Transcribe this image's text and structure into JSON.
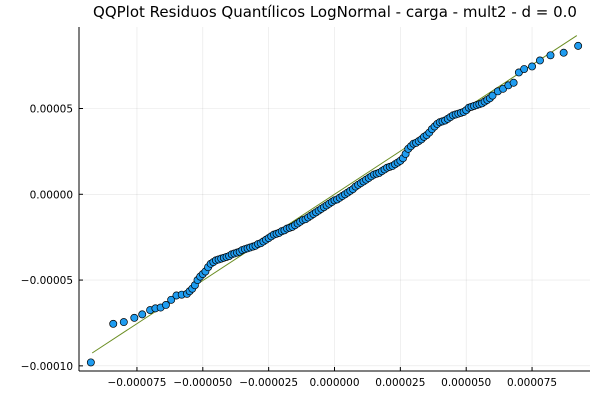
{
  "chart_data": {
    "type": "scatter",
    "title": "QQPlot Residuos Quantílicos LogNormal - carga - mult2 - d = 0.0",
    "xlabel": "",
    "ylabel": "",
    "xlim": [
      -9.7e-05,
      9.7e-05
    ],
    "ylim": [
      -0.000103,
      9.75e-05
    ],
    "grid": true,
    "legend": "none",
    "x_ticks": [
      -7.5e-05,
      -5e-05,
      -2.5e-05,
      0.0,
      2.5e-05,
      5e-05,
      7.5e-05
    ],
    "x_tick_labels": [
      "−0.000075",
      "−0.000050",
      "−0.000025",
      "0.000000",
      "0.000025",
      "0.000050",
      "0.000075"
    ],
    "y_ticks": [
      -0.0001,
      -5e-05,
      0.0,
      5e-05
    ],
    "y_tick_labels": [
      "−0.00010",
      "−0.00005",
      "0.00000",
      "0.00005"
    ],
    "reference_line": {
      "x": [
        -9.2e-05,
        9.2e-05
      ],
      "y": [
        -9.25e-05,
        9.25e-05
      ]
    },
    "marker_color": "#1f9cf0",
    "line_color": "#6b8e23",
    "series": [
      {
        "values_x": [
          -9.25e-05,
          -8.4e-05,
          -8e-05,
          -7.6e-05,
          -7.3e-05,
          -7e-05,
          -6.8e-05,
          -6.6e-05,
          -6.4e-05,
          -6.2e-05,
          -6e-05,
          -5.8e-05,
          -5.6e-05,
          -5.5e-05,
          -5.4e-05,
          -5.3e-05,
          -5.2e-05,
          -5.1e-05,
          -5e-05,
          -4.9e-05,
          -4.8e-05,
          -4.7e-05,
          -4.6e-05,
          -4.5e-05,
          -4.4e-05,
          -4.3e-05,
          -4.2e-05,
          -4.1e-05,
          -4e-05,
          -3.9e-05,
          -3.8e-05,
          -3.7e-05,
          -3.6e-05,
          -3.5e-05,
          -3.4e-05,
          -3.3e-05,
          -3.2e-05,
          -3.1e-05,
          -3e-05,
          -2.9e-05,
          -2.8e-05,
          -2.7e-05,
          -2.6e-05,
          -2.5e-05,
          -2.4e-05,
          -2.3e-05,
          -2.2e-05,
          -2.1e-05,
          -2e-05,
          -1.9e-05,
          -1.8e-05,
          -1.7e-05,
          -1.6e-05,
          -1.5e-05,
          -1.4e-05,
          -1.3e-05,
          -1.2e-05,
          -1.1e-05,
          -1e-05,
          -9e-06,
          -8e-06,
          -7e-06,
          -6e-06,
          -5e-06,
          -4e-06,
          -3e-06,
          -2e-06,
          -1e-06,
          0.0,
          1e-06,
          2e-06,
          3e-06,
          4e-06,
          5e-06,
          6e-06,
          7e-06,
          8e-06,
          9e-06,
          1e-05,
          1.1e-05,
          1.2e-05,
          1.3e-05,
          1.4e-05,
          1.5e-05,
          1.6e-05,
          1.7e-05,
          1.8e-05,
          1.9e-05,
          2e-05,
          2.1e-05,
          2.2e-05,
          2.3e-05,
          2.4e-05,
          2.5e-05,
          2.6e-05,
          2.7e-05,
          2.8e-05,
          2.9e-05,
          3e-05,
          3.1e-05,
          3.2e-05,
          3.3e-05,
          3.4e-05,
          3.5e-05,
          3.6e-05,
          3.7e-05,
          3.8e-05,
          3.9e-05,
          4e-05,
          4.1e-05,
          4.2e-05,
          4.3e-05,
          4.4e-05,
          4.5e-05,
          4.6e-05,
          4.7e-05,
          4.8e-05,
          4.9e-05,
          5e-05,
          5.1e-05,
          5.2e-05,
          5.3e-05,
          5.4e-05,
          5.5e-05,
          5.6e-05,
          5.7e-05,
          5.8e-05,
          5.9e-05,
          6e-05,
          6.2e-05,
          6.4e-05,
          6.6e-05,
          6.8e-05,
          7e-05,
          7.2e-05,
          7.5e-05,
          7.8e-05,
          8.2e-05,
          8.7e-05,
          9.25e-05
        ],
        "values_y": [
          -9.8e-05,
          -7.55e-05,
          -7.45e-05,
          -7.2e-05,
          -7e-05,
          -6.75e-05,
          -6.65e-05,
          -6.6e-05,
          -6.45e-05,
          -6.15e-05,
          -5.9e-05,
          -5.85e-05,
          -5.8e-05,
          -5.65e-05,
          -5.5e-05,
          -5.3e-05,
          -5e-05,
          -4.8e-05,
          -4.65e-05,
          -4.5e-05,
          -4.25e-05,
          -4.05e-05,
          -3.95e-05,
          -3.85e-05,
          -3.8e-05,
          -3.75e-05,
          -3.7e-05,
          -3.65e-05,
          -3.6e-05,
          -3.5e-05,
          -3.45e-05,
          -3.4e-05,
          -3.35e-05,
          -3.25e-05,
          -3.2e-05,
          -3.15e-05,
          -3.1e-05,
          -3.05e-05,
          -3e-05,
          -2.9e-05,
          -2.85e-05,
          -2.75e-05,
          -2.65e-05,
          -2.55e-05,
          -2.45e-05,
          -2.35e-05,
          -2.3e-05,
          -2.25e-05,
          -2.15e-05,
          -2.1e-05,
          -2e-05,
          -1.95e-05,
          -1.9e-05,
          -1.8e-05,
          -1.7e-05,
          -1.6e-05,
          -1.5e-05,
          -1.45e-05,
          -1.35e-05,
          -1.25e-05,
          -1.15e-05,
          -1.05e-05,
          -9.5e-06,
          -8.5e-06,
          -7.5e-06,
          -6.5e-06,
          -5.5e-06,
          -4.5e-06,
          -3.5e-06,
          -3e-06,
          -2e-06,
          -1e-06,
          0.0,
          1e-06,
          2e-06,
          3e-06,
          4.5e-06,
          5.5e-06,
          6.5e-06,
          7.5e-06,
          8.5e-06,
          9.5e-06,
          1.05e-05,
          1.15e-05,
          1.2e-05,
          1.25e-05,
          1.35e-05,
          1.45e-05,
          1.55e-05,
          1.6e-05,
          1.65e-05,
          1.75e-05,
          1.85e-05,
          1.95e-05,
          2.1e-05,
          2.35e-05,
          2.65e-05,
          2.8e-05,
          2.95e-05,
          3e-05,
          3.1e-05,
          3.2e-05,
          3.35e-05,
          3.45e-05,
          3.6e-05,
          3.8e-05,
          3.95e-05,
          4.1e-05,
          4.2e-05,
          4.25e-05,
          4.3e-05,
          4.4e-05,
          4.5e-05,
          4.6e-05,
          4.65e-05,
          4.7e-05,
          4.75e-05,
          4.8e-05,
          4.9e-05,
          5.05e-05,
          5.1e-05,
          5.15e-05,
          5.2e-05,
          5.25e-05,
          5.3e-05,
          5.4e-05,
          5.5e-05,
          5.6e-05,
          5.75e-05,
          6e-05,
          6.15e-05,
          6.35e-05,
          6.5e-05,
          7.1e-05,
          7.3e-05,
          7.45e-05,
          7.8e-05,
          8.1e-05,
          8.25e-05,
          8.65e-05
        ]
      }
    ]
  }
}
